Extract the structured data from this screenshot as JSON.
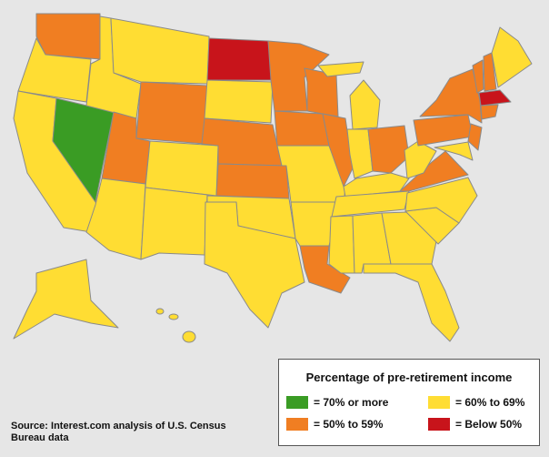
{
  "legend": {
    "title": "Percentage of pre-retirement income",
    "items": [
      {
        "label": "= 70% or more",
        "color": "#3a9c24"
      },
      {
        "label": "= 60% to 69%",
        "color": "#ffdd33"
      },
      {
        "label": "= 50% to 59%",
        "color": "#f07e22"
      },
      {
        "label": "= Below 50%",
        "color": "#c8141b"
      }
    ]
  },
  "source": "Source: Interest.com analysis of U.S. Census Bureau data"
}
